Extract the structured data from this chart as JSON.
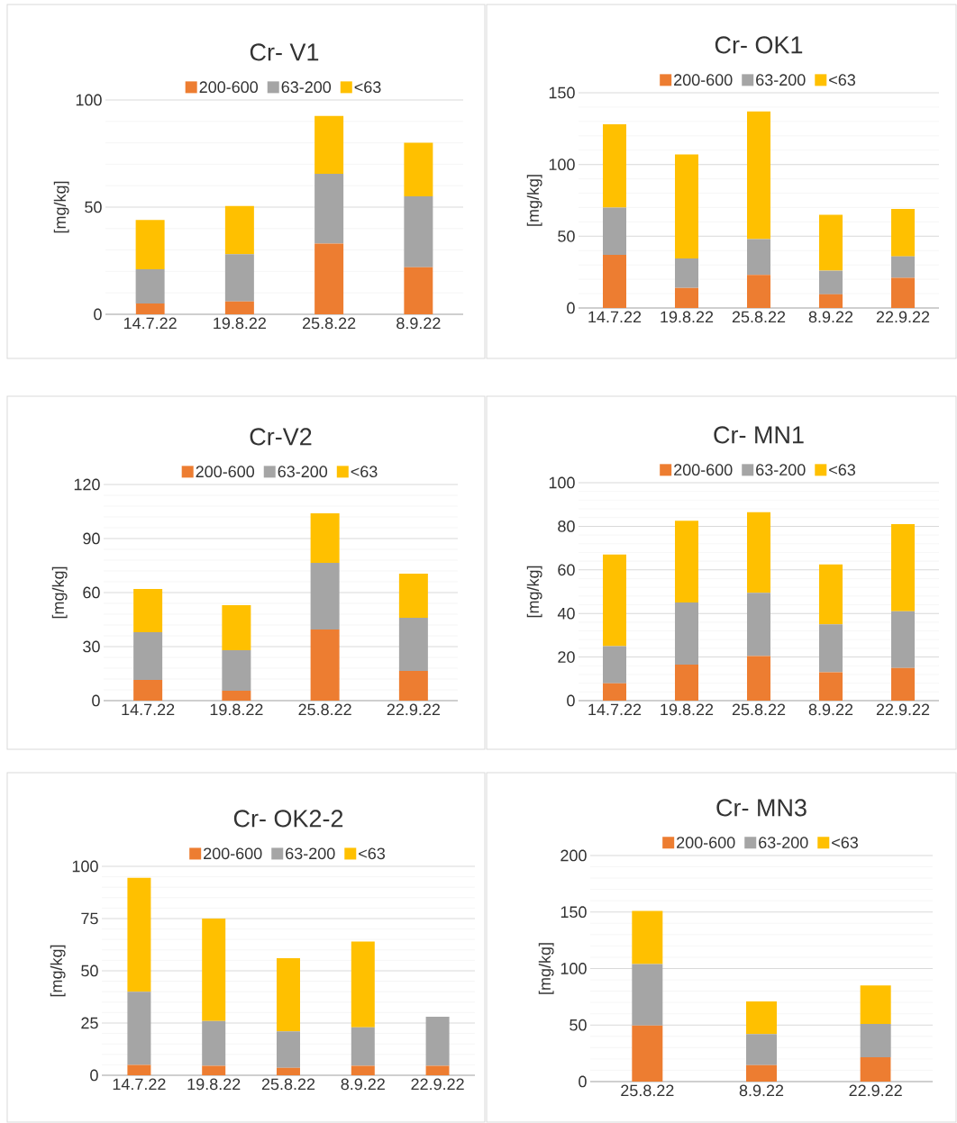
{
  "chart_data": [
    {
      "type": "bar",
      "stacked": true,
      "title": "Cr- V1",
      "ylabel": "[mg/kg]",
      "categories": [
        "14.7.22",
        "19.8.22",
        "25.8.22",
        "8.9.22"
      ],
      "ylim": [
        0,
        100
      ],
      "yticks": [
        0,
        50,
        100
      ],
      "grid": "y",
      "legend": "top",
      "series": [
        {
          "name": "200-600",
          "color": "#ed7d31",
          "values": [
            5,
            6,
            33,
            22
          ]
        },
        {
          "name": "63-200",
          "color": "#a5a5a5",
          "values": [
            16,
            22,
            32.5,
            33
          ]
        },
        {
          "name": "<63",
          "color": "#ffc000",
          "values": [
            23,
            22.5,
            27,
            25
          ]
        }
      ]
    },
    {
      "type": "bar",
      "stacked": true,
      "title": "Cr- OK1",
      "ylabel": "[mg/kg]",
      "categories": [
        "14.7.22",
        "19.8.22",
        "25.8.22",
        "8.9.22",
        "22.9.22"
      ],
      "ylim": [
        0,
        150
      ],
      "yticks": [
        0,
        50,
        100,
        150
      ],
      "grid": "y",
      "legend": "top",
      "series": [
        {
          "name": "200-600",
          "color": "#ed7d31",
          "values": [
            37,
            14,
            23,
            9.5,
            21
          ]
        },
        {
          "name": "63-200",
          "color": "#a5a5a5",
          "values": [
            33,
            20.5,
            25,
            16.5,
            15
          ]
        },
        {
          "name": "<63",
          "color": "#ffc000",
          "values": [
            58,
            72.5,
            89,
            39,
            33
          ]
        }
      ]
    },
    {
      "type": "bar",
      "stacked": true,
      "title": "Cr-V2",
      "ylabel": "[mg/kg]",
      "categories": [
        "14.7.22",
        "19.8.22",
        "25.8.22",
        "22.9.22"
      ],
      "ylim": [
        0,
        120
      ],
      "yticks": [
        0,
        30,
        60,
        90,
        120
      ],
      "grid": "y",
      "legend": "top",
      "series": [
        {
          "name": "200-600",
          "color": "#ed7d31",
          "values": [
            11.5,
            5.5,
            39.5,
            16.5
          ]
        },
        {
          "name": "63-200",
          "color": "#a5a5a5",
          "values": [
            26.5,
            22.5,
            37,
            29.5
          ]
        },
        {
          "name": "<63",
          "color": "#ffc000",
          "values": [
            24,
            25,
            27.5,
            24.5
          ]
        }
      ]
    },
    {
      "type": "bar",
      "stacked": true,
      "title": "Cr- MN1",
      "ylabel": "[mg/kg]",
      "categories": [
        "14.7.22",
        "19.8.22",
        "25.8.22",
        "8.9.22",
        "22.9.22"
      ],
      "ylim": [
        0,
        100
      ],
      "yticks": [
        0,
        20,
        40,
        60,
        80,
        100
      ],
      "grid": "y",
      "legend": "top",
      "series": [
        {
          "name": "200-600",
          "color": "#ed7d31",
          "values": [
            8,
            16.5,
            20.5,
            13,
            15
          ]
        },
        {
          "name": "63-200",
          "color": "#a5a5a5",
          "values": [
            17,
            28.5,
            29,
            22,
            26
          ]
        },
        {
          "name": "<63",
          "color": "#ffc000",
          "values": [
            42,
            37.5,
            37,
            27.5,
            40
          ]
        }
      ]
    },
    {
      "type": "bar",
      "stacked": true,
      "title": "Cr- OK2-2",
      "ylabel": "[mg/kg]",
      "categories": [
        "14.7.22",
        "19.8.22",
        "25.8.22",
        "8.9.22",
        "22.9.22"
      ],
      "ylim": [
        0,
        100
      ],
      "yticks": [
        0,
        25,
        50,
        75,
        100
      ],
      "grid": "y",
      "legend": "top",
      "series": [
        {
          "name": "200-600",
          "color": "#ed7d31",
          "values": [
            5,
            4.5,
            3.5,
            4.5,
            4.5
          ]
        },
        {
          "name": "63-200",
          "color": "#a5a5a5",
          "values": [
            35,
            21.5,
            17.5,
            18.5,
            23.5
          ]
        },
        {
          "name": "<63",
          "color": "#ffc000",
          "values": [
            54.5,
            49,
            35,
            41,
            0
          ]
        }
      ]
    },
    {
      "type": "bar",
      "stacked": true,
      "title": "Cr- MN3",
      "ylabel": "[mg/kg]",
      "categories": [
        "25.8.22",
        "8.9.22",
        "22.9.22"
      ],
      "ylim": [
        0,
        200
      ],
      "yticks": [
        0,
        50,
        100,
        150,
        200
      ],
      "grid": "y",
      "legend": "top",
      "series": [
        {
          "name": "200-600",
          "color": "#ed7d31",
          "values": [
            49.5,
            14.5,
            21.5
          ]
        },
        {
          "name": "63-200",
          "color": "#a5a5a5",
          "values": [
            54.5,
            27.5,
            29.5
          ]
        },
        {
          "name": "<63",
          "color": "#ffc000",
          "values": [
            47,
            29,
            34
          ]
        }
      ]
    }
  ]
}
